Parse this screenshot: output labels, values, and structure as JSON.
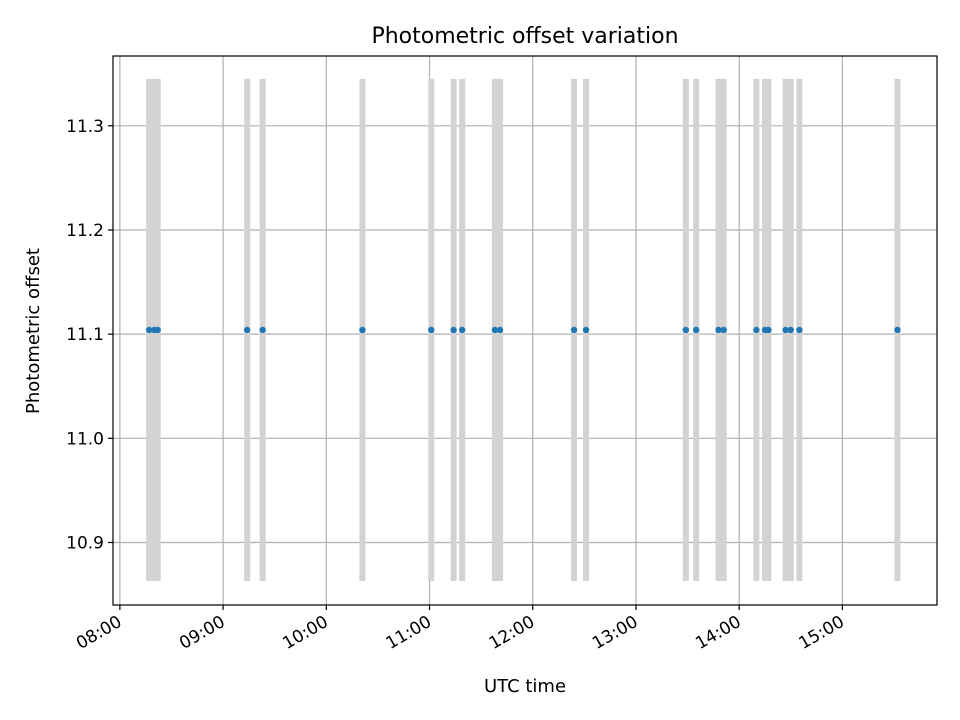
{
  "chart_data": {
    "type": "scatter",
    "title": "Photometric offset variation",
    "xlabel": "UTC time",
    "ylabel": "Photometric offset",
    "x_axis": {
      "min": "07:56",
      "max": "15:55",
      "ticks": [
        "08:00",
        "09:00",
        "10:00",
        "11:00",
        "12:00",
        "13:00",
        "14:00",
        "15:00"
      ]
    },
    "y_axis": {
      "min": 10.84,
      "max": 11.367,
      "ticks": [
        10.9,
        11.0,
        11.1,
        11.2,
        11.3
      ]
    },
    "grid": true,
    "error_bars": {
      "low": 10.863,
      "high": 11.345,
      "color": "#d3d3d3"
    },
    "point_color": "#1f77b4",
    "series": [
      {
        "points": [
          {
            "time": "08:17",
            "value": 11.104
          },
          {
            "time": "08:20",
            "value": 11.104
          },
          {
            "time": "08:22",
            "value": 11.104
          },
          {
            "time": "09:14",
            "value": 11.104
          },
          {
            "time": "09:23",
            "value": 11.104
          },
          {
            "time": "10:21",
            "value": 11.104
          },
          {
            "time": "11:01",
            "value": 11.104
          },
          {
            "time": "11:14",
            "value": 11.104
          },
          {
            "time": "11:19",
            "value": 11.104
          },
          {
            "time": "11:38",
            "value": 11.104
          },
          {
            "time": "11:41",
            "value": 11.104
          },
          {
            "time": "12:24",
            "value": 11.104
          },
          {
            "time": "12:31",
            "value": 11.104
          },
          {
            "time": "13:29",
            "value": 11.104
          },
          {
            "time": "13:35",
            "value": 11.104
          },
          {
            "time": "13:48",
            "value": 11.104
          },
          {
            "time": "13:51",
            "value": 11.104
          },
          {
            "time": "14:10",
            "value": 11.104
          },
          {
            "time": "14:15",
            "value": 11.104
          },
          {
            "time": "14:17",
            "value": 11.104
          },
          {
            "time": "14:27",
            "value": 11.104
          },
          {
            "time": "14:30",
            "value": 11.104
          },
          {
            "time": "14:35",
            "value": 11.104
          },
          {
            "time": "15:32",
            "value": 11.104
          }
        ]
      }
    ]
  }
}
